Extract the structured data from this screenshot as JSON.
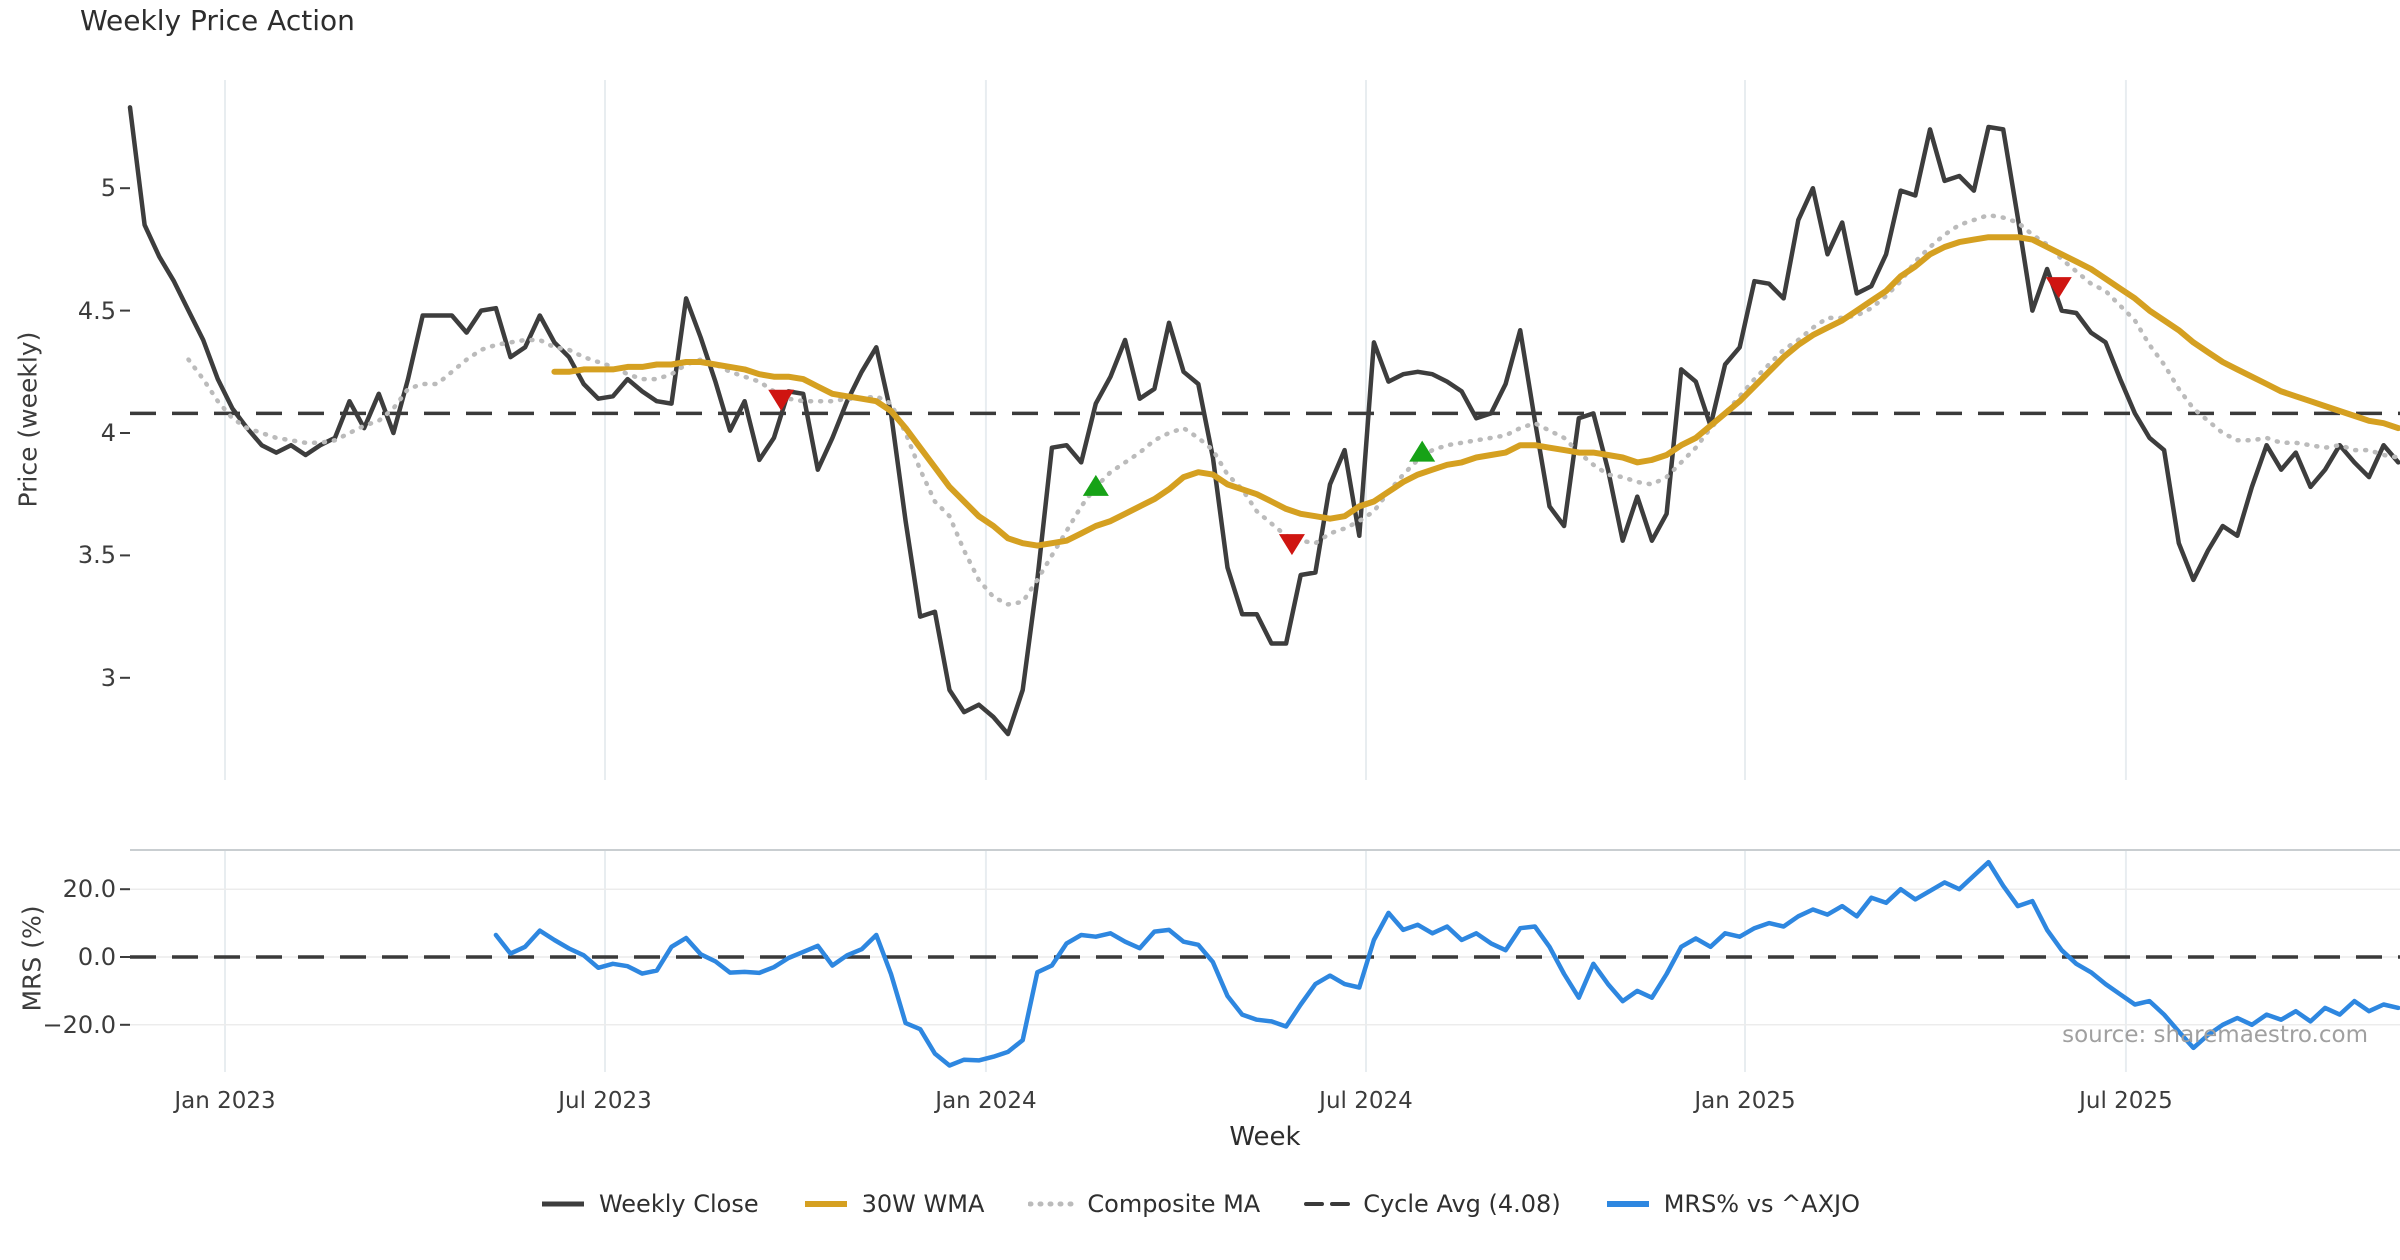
{
  "title": "Weekly Price Action",
  "xlabel": "Week",
  "source_text": "source: sharemaestro.com",
  "price_panel": {
    "ylabel": "Price (weekly)",
    "yticks": [
      "5",
      "4.5",
      "4",
      "3.5",
      "3"
    ],
    "ytick_values": [
      5,
      4.5,
      4,
      3.5,
      3
    ]
  },
  "mrs_panel": {
    "ylabel": "MRS (%)",
    "yticks": [
      "20.0",
      "0.0",
      "−20.0"
    ],
    "ytick_values": [
      20,
      0,
      -20
    ]
  },
  "legend": {
    "weekly_close": "Weekly Close",
    "wma": "30W WMA",
    "composite": "Composite MA",
    "cycle_avg": "Cycle Avg (4.08)",
    "mrs": "MRS% vs ^AXJO"
  },
  "colors": {
    "weekly_close": "#3d3d3d",
    "wma": "#d5a021",
    "composite": "#bbbbbb",
    "cycle_avg": "#3a3a3a",
    "mrs": "#2e87e0",
    "buy": "#17a217",
    "sell": "#cf1511",
    "grid": "#e8edf0",
    "panel_grid": "#ececec",
    "spine": "#c9ced1",
    "tick": "#3c3c3c"
  },
  "chart_data": {
    "type": "line",
    "title": "Weekly Price Action",
    "xlabel": "Week",
    "ylabel_top": "Price (weekly)",
    "ylabel_bottom": "MRS (%)",
    "freq": "weekly",
    "start_date": "2022-11-14",
    "n_weeks": 156,
    "cycle_avg": 4.08,
    "ylim_price": [
      2.6,
      5.45
    ],
    "ylim_mrs": [
      -35,
      32
    ],
    "grid": "vertical-only",
    "legend_position": "bottom-center",
    "xticks": [
      {
        "label": "Jan 2023",
        "week": 6.49
      },
      {
        "label": "Jul 2023",
        "week": 32.46
      },
      {
        "label": "Jan 2024",
        "week": 58.49
      },
      {
        "label": "Jul 2024",
        "week": 84.46
      },
      {
        "label": "Jan 2025",
        "week": 110.36
      },
      {
        "label": "Jul 2025",
        "week": 136.39
      }
    ],
    "series": [
      {
        "name": "Weekly Close",
        "panel": "price",
        "style": "solid",
        "values": [
          5.33,
          4.85,
          4.72,
          4.62,
          4.5,
          4.38,
          4.22,
          4.1,
          4.02,
          3.95,
          3.92,
          3.95,
          3.91,
          3.95,
          3.98,
          4.13,
          4.02,
          4.16,
          4.0,
          4.22,
          4.48,
          4.48,
          4.48,
          4.41,
          4.5,
          4.51,
          4.31,
          4.35,
          4.48,
          4.37,
          4.31,
          4.2,
          4.14,
          4.15,
          4.22,
          4.17,
          4.13,
          4.12,
          4.55,
          4.39,
          4.21,
          4.01,
          4.13,
          3.89,
          3.98,
          4.17,
          4.16,
          3.85,
          3.98,
          4.13,
          4.25,
          4.35,
          4.08,
          3.64,
          3.25,
          3.27,
          2.95,
          2.86,
          2.89,
          2.84,
          2.77,
          2.95,
          3.4,
          3.94,
          3.95,
          3.88,
          4.12,
          4.23,
          4.38,
          4.14,
          4.18,
          4.45,
          4.25,
          4.2,
          3.9,
          3.45,
          3.26,
          3.26,
          3.14,
          3.14,
          3.42,
          3.43,
          3.79,
          3.93,
          3.58,
          4.37,
          4.21,
          4.24,
          4.25,
          4.24,
          4.21,
          4.17,
          4.06,
          4.08,
          4.2,
          4.42,
          4.05,
          3.7,
          3.62,
          4.06,
          4.08,
          3.85,
          3.56,
          3.74,
          3.56,
          3.67,
          4.26,
          4.21,
          4.03,
          4.28,
          4.35,
          4.62,
          4.61,
          4.55,
          4.87,
          5.0,
          4.73,
          4.86,
          4.57,
          4.6,
          4.73,
          4.99,
          4.97,
          5.24,
          5.03,
          5.05,
          4.99,
          5.25,
          5.24,
          4.88,
          4.5,
          4.67,
          4.5,
          4.49,
          4.41,
          4.37,
          4.22,
          4.08,
          3.98,
          3.93,
          3.55,
          3.4,
          3.52,
          3.62,
          3.58,
          3.78,
          3.95,
          3.85,
          3.92,
          3.78,
          3.85,
          3.95,
          3.88,
          3.82,
          3.95,
          3.88
        ]
      },
      {
        "name": "30W WMA",
        "panel": "price",
        "style": "solid",
        "values": [
          null,
          null,
          null,
          null,
          null,
          null,
          null,
          null,
          null,
          null,
          null,
          null,
          null,
          null,
          null,
          null,
          null,
          null,
          null,
          null,
          null,
          null,
          null,
          null,
          null,
          null,
          null,
          null,
          null,
          4.25,
          4.25,
          4.26,
          4.26,
          4.26,
          4.27,
          4.27,
          4.28,
          4.28,
          4.29,
          4.29,
          4.28,
          4.27,
          4.26,
          4.24,
          4.23,
          4.23,
          4.22,
          4.19,
          4.16,
          4.15,
          4.14,
          4.13,
          4.09,
          4.02,
          3.94,
          3.86,
          3.78,
          3.72,
          3.66,
          3.62,
          3.57,
          3.55,
          3.54,
          3.55,
          3.56,
          3.59,
          3.62,
          3.64,
          3.67,
          3.7,
          3.73,
          3.77,
          3.82,
          3.84,
          3.83,
          3.79,
          3.77,
          3.75,
          3.72,
          3.69,
          3.67,
          3.66,
          3.65,
          3.66,
          3.7,
          3.72,
          3.76,
          3.8,
          3.83,
          3.85,
          3.87,
          3.88,
          3.9,
          3.91,
          3.92,
          3.95,
          3.95,
          3.94,
          3.93,
          3.92,
          3.92,
          3.91,
          3.9,
          3.88,
          3.89,
          3.91,
          3.95,
          3.98,
          4.03,
          4.08,
          4.13,
          4.19,
          4.25,
          4.31,
          4.36,
          4.4,
          4.43,
          4.46,
          4.5,
          4.54,
          4.58,
          4.64,
          4.68,
          4.73,
          4.76,
          4.78,
          4.79,
          4.8,
          4.8,
          4.8,
          4.79,
          4.76,
          4.73,
          4.7,
          4.67,
          4.63,
          4.59,
          4.55,
          4.5,
          4.46,
          4.42,
          4.37,
          4.33,
          4.29,
          4.26,
          4.23,
          4.2,
          4.17,
          4.15,
          4.13,
          4.11,
          4.09,
          4.07,
          4.05,
          4.04,
          4.02
        ]
      },
      {
        "name": "Composite MA",
        "panel": "price",
        "style": "dotted",
        "values": [
          null,
          null,
          null,
          null,
          4.3,
          4.22,
          4.13,
          4.06,
          4.02,
          4.0,
          3.98,
          3.97,
          3.96,
          3.96,
          3.97,
          4.0,
          4.03,
          4.05,
          4.1,
          4.18,
          4.2,
          4.2,
          4.25,
          4.3,
          4.34,
          4.36,
          4.37,
          4.38,
          4.38,
          4.35,
          4.34,
          4.31,
          4.29,
          4.27,
          4.24,
          4.22,
          4.22,
          4.24,
          4.28,
          4.3,
          4.28,
          4.25,
          4.23,
          4.21,
          4.17,
          4.14,
          4.13,
          4.13,
          4.13,
          4.14,
          4.14,
          4.15,
          4.12,
          4.0,
          3.85,
          3.72,
          3.66,
          3.52,
          3.4,
          3.33,
          3.3,
          3.31,
          3.4,
          3.5,
          3.6,
          3.7,
          3.78,
          3.84,
          3.88,
          3.92,
          3.97,
          4.0,
          4.02,
          3.98,
          3.93,
          3.83,
          3.77,
          3.68,
          3.63,
          3.58,
          3.56,
          3.55,
          3.59,
          3.61,
          3.64,
          3.68,
          3.76,
          3.83,
          3.89,
          3.93,
          3.95,
          3.96,
          3.97,
          3.98,
          3.99,
          4.02,
          4.04,
          4.01,
          3.98,
          3.92,
          3.87,
          3.83,
          3.82,
          3.8,
          3.79,
          3.82,
          3.88,
          3.94,
          4.02,
          4.08,
          4.15,
          4.22,
          4.28,
          4.34,
          4.38,
          4.43,
          4.47,
          4.47,
          4.48,
          4.51,
          4.56,
          4.62,
          4.7,
          4.76,
          4.81,
          4.85,
          4.87,
          4.89,
          4.88,
          4.86,
          4.81,
          4.77,
          4.71,
          4.66,
          4.61,
          4.58,
          4.52,
          4.46,
          4.36,
          4.28,
          4.18,
          4.1,
          4.05,
          4.0,
          3.97,
          3.97,
          3.98,
          3.96,
          3.96,
          3.95,
          3.94,
          3.95,
          3.93,
          3.93,
          3.91,
          3.9
        ]
      },
      {
        "name": "MRS% vs ^AXJO",
        "panel": "mrs",
        "style": "solid",
        "values": [
          null,
          null,
          null,
          null,
          null,
          null,
          null,
          null,
          null,
          null,
          null,
          null,
          null,
          null,
          null,
          null,
          null,
          null,
          null,
          null,
          null,
          null,
          null,
          null,
          null,
          6.5,
          1.0,
          3.0,
          7.8,
          5.0,
          2.5,
          0.5,
          -3.2,
          -2.0,
          -2.7,
          -4.9,
          -4.0,
          3.0,
          5.6,
          0.8,
          -1.3,
          -4.6,
          -4.4,
          -4.7,
          -3.0,
          -0.3,
          1.5,
          3.3,
          -2.5,
          0.5,
          2.3,
          6.5,
          -5.0,
          -19.5,
          -21.3,
          -28.5,
          -32.0,
          -30.3,
          -30.5,
          -29.4,
          -28.0,
          -24.5,
          -4.5,
          -2.5,
          4.0,
          6.5,
          6.0,
          7.0,
          4.5,
          2.6,
          7.5,
          8.0,
          4.5,
          3.6,
          -1.5,
          -11.5,
          -17.0,
          -18.5,
          -19.0,
          -20.5,
          -14.0,
          -8.0,
          -5.5,
          -8.0,
          -9.0,
          5.0,
          13.0,
          8.0,
          9.5,
          7.0,
          9.0,
          5.0,
          7.0,
          4.0,
          2.0,
          8.5,
          9.0,
          3.0,
          -5.0,
          -12.0,
          -2.0,
          -8.0,
          -13.0,
          -10.0,
          -12.0,
          -5.0,
          3.0,
          5.5,
          3.0,
          7.0,
          6.0,
          8.5,
          10.0,
          9.0,
          12.0,
          14.0,
          12.5,
          15.0,
          12.0,
          17.5,
          16.0,
          20.0,
          17.0,
          19.5,
          22.0,
          20.0,
          24.0,
          28.0,
          21.0,
          15.0,
          16.5,
          8.0,
          2.0,
          -2.0,
          -4.5,
          -8.0,
          -11.0,
          -14.0,
          -13.0,
          -17.0,
          -22.0,
          -26.8,
          -23.0,
          -20.0,
          -18.0,
          -20.0,
          -17.0,
          -18.5,
          -16.0,
          -19.0,
          -15.0,
          -17.0,
          -13.0,
          -16.0,
          -14.0,
          -15.0
        ]
      }
    ],
    "markers": [
      {
        "week": 44.5,
        "price": 4.14,
        "type": "sell"
      },
      {
        "week": 66.0,
        "price": 3.78,
        "type": "buy"
      },
      {
        "week": 79.4,
        "price": 3.55,
        "type": "sell"
      },
      {
        "week": 88.3,
        "price": 3.92,
        "type": "buy"
      },
      {
        "week": 131.8,
        "price": 4.6,
        "type": "sell"
      }
    ]
  }
}
